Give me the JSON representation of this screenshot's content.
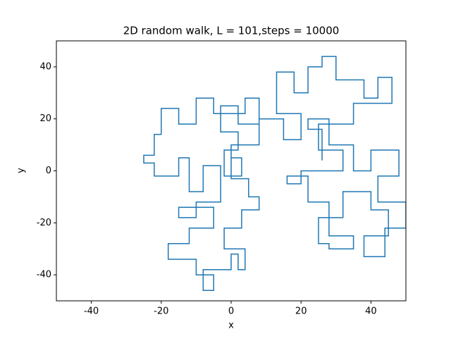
{
  "chart_data": {
    "type": "line",
    "title": "2D random walk, L = 101,steps = 10000",
    "x_label": "x",
    "y_label": "y",
    "color": "#1f77b4",
    "xlim": [
      -50,
      50
    ],
    "ylim": [
      -50,
      50
    ],
    "xticks": [
      -40,
      -20,
      0,
      20,
      40
    ],
    "yticks": [
      -40,
      -20,
      0,
      20,
      40
    ],
    "x": [
      0,
      0,
      3,
      3,
      -2,
      -2,
      2,
      2,
      -3,
      -3,
      2,
      2,
      8,
      8,
      4,
      4,
      -5,
      -5,
      -10,
      -10,
      -15,
      -15,
      -20,
      -20,
      -22,
      -22,
      -25,
      -25,
      -22,
      -22,
      -15,
      -15,
      -12,
      -12,
      -8,
      -8,
      -3,
      -3,
      -10,
      -10,
      -15,
      -15,
      -5,
      -5,
      -12,
      -12,
      -18,
      -18,
      -10,
      -10,
      -5,
      -5,
      -8,
      -8,
      0,
      0,
      2,
      2,
      4,
      4,
      -2,
      -2,
      3,
      3,
      8,
      8,
      5,
      5,
      0,
      0,
      8,
      8,
      15,
      15,
      20,
      20,
      13,
      13,
      18,
      18,
      22,
      22,
      26,
      26,
      30,
      30,
      38,
      38,
      42,
      42,
      46,
      46,
      35,
      35,
      25,
      25,
      32,
      32,
      20,
      20,
      16,
      16,
      22,
      22,
      28,
      28,
      35,
      35,
      28,
      28,
      25,
      25,
      32,
      32,
      40,
      40,
      45,
      45,
      38,
      38,
      44,
      44,
      50,
      50,
      42,
      42,
      48,
      48,
      40,
      40,
      35,
      35,
      28,
      28,
      22,
      22,
      26,
      26
    ],
    "values": [
      0,
      5,
      5,
      -2,
      -2,
      8,
      8,
      15,
      15,
      25,
      25,
      18,
      18,
      28,
      28,
      22,
      22,
      28,
      28,
      18,
      18,
      24,
      24,
      14,
      14,
      6,
      6,
      3,
      3,
      -2,
      -2,
      5,
      5,
      -8,
      -8,
      2,
      2,
      -12,
      -12,
      -18,
      -18,
      -14,
      -14,
      -22,
      -22,
      -28,
      -28,
      -34,
      -34,
      -40,
      -40,
      -46,
      -46,
      -38,
      -38,
      -32,
      -32,
      -38,
      -38,
      -30,
      -30,
      -22,
      -22,
      -15,
      -15,
      -10,
      -10,
      -3,
      -3,
      10,
      10,
      20,
      20,
      12,
      12,
      22,
      22,
      38,
      38,
      30,
      30,
      40,
      40,
      44,
      44,
      35,
      35,
      28,
      28,
      36,
      36,
      26,
      26,
      18,
      18,
      8,
      8,
      0,
      0,
      -5,
      -5,
      -2,
      -2,
      -12,
      -12,
      -25,
      -25,
      -30,
      -30,
      -28,
      -28,
      -18,
      -18,
      -8,
      -8,
      -15,
      -15,
      -25,
      -25,
      -33,
      -33,
      -22,
      -22,
      -12,
      -12,
      -2,
      -2,
      8,
      8,
      0,
      0,
      10,
      10,
      20,
      20,
      16,
      16,
      4
    ]
  }
}
